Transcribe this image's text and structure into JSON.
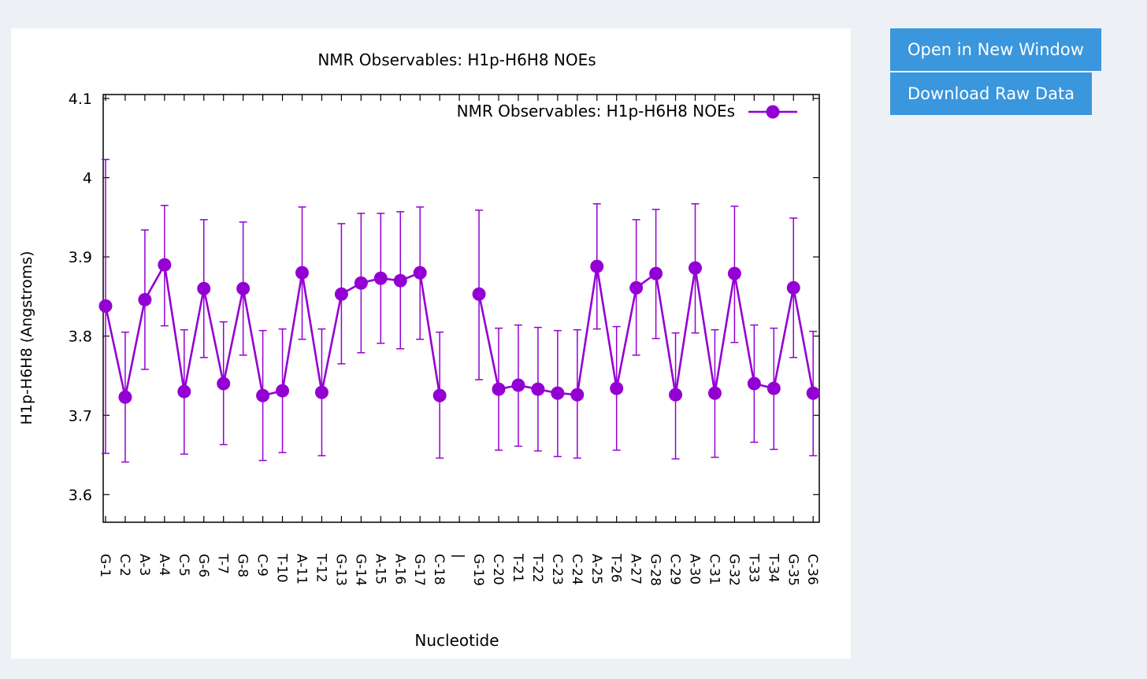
{
  "buttons": {
    "open_label": "Open in New Window",
    "download_label": "Download Raw Data"
  },
  "colors": {
    "series": "#9400d3",
    "button_bg": "#3a96dd",
    "page_bg": "#edf1f6"
  },
  "chart_data": {
    "type": "line",
    "title": "NMR Observables: H1p-H6H8 NOEs",
    "xlabel": "Nucleotide",
    "ylabel": "H1p-H6H8 (Angstroms)",
    "ylim": [
      3.565,
      4.105
    ],
    "yticks": [
      3.6,
      3.7,
      3.8,
      3.9,
      4.0,
      4.1
    ],
    "ytick_labels": [
      "3.6",
      "3.7",
      "3.8",
      "3.9",
      "4",
      "4.1"
    ],
    "grid": false,
    "legend_position": "top-right",
    "categories": [
      "G-1",
      "C-2",
      "A-3",
      "A-4",
      "C-5",
      "G-6",
      "T-7",
      "G-8",
      "C-9",
      "T-10",
      "A-11",
      "T-12",
      "G-13",
      "G-14",
      "A-15",
      "A-16",
      "G-17",
      "C-18",
      "|",
      "G-19",
      "C-20",
      "T-21",
      "T-22",
      "C-23",
      "C-24",
      "A-25",
      "T-26",
      "A-27",
      "G-28",
      "C-29",
      "A-30",
      "C-31",
      "G-32",
      "T-33",
      "T-34",
      "G-35",
      "C-36"
    ],
    "series": [
      {
        "name": "NMR Observables: H1p-H6H8 NOEs",
        "values": [
          3.838,
          3.723,
          3.846,
          3.89,
          3.73,
          3.86,
          3.74,
          3.86,
          3.725,
          3.731,
          3.88,
          3.729,
          3.853,
          3.867,
          3.873,
          3.87,
          3.88,
          3.725,
          null,
          3.853,
          3.733,
          3.738,
          3.733,
          3.728,
          3.726,
          3.888,
          3.734,
          3.861,
          3.879,
          3.726,
          3.886,
          3.728,
          3.879,
          3.74,
          3.734,
          3.861,
          3.728
        ],
        "err_low": [
          3.652,
          3.641,
          3.758,
          3.813,
          3.651,
          3.773,
          3.663,
          3.776,
          3.643,
          3.653,
          3.796,
          3.649,
          3.765,
          3.779,
          3.791,
          3.784,
          3.796,
          3.646,
          null,
          3.745,
          3.656,
          3.661,
          3.655,
          3.648,
          3.646,
          3.809,
          3.656,
          3.776,
          3.797,
          3.645,
          3.804,
          3.647,
          3.792,
          3.666,
          3.657,
          3.773,
          3.649
        ],
        "err_high": [
          4.023,
          3.805,
          3.934,
          3.965,
          3.808,
          3.947,
          3.818,
          3.944,
          3.807,
          3.809,
          3.963,
          3.809,
          3.942,
          3.955,
          3.955,
          3.957,
          3.963,
          3.805,
          null,
          3.959,
          3.81,
          3.814,
          3.811,
          3.807,
          3.808,
          3.967,
          3.812,
          3.947,
          3.96,
          3.804,
          3.967,
          3.808,
          3.964,
          3.814,
          3.81,
          3.949,
          3.806
        ]
      }
    ]
  }
}
